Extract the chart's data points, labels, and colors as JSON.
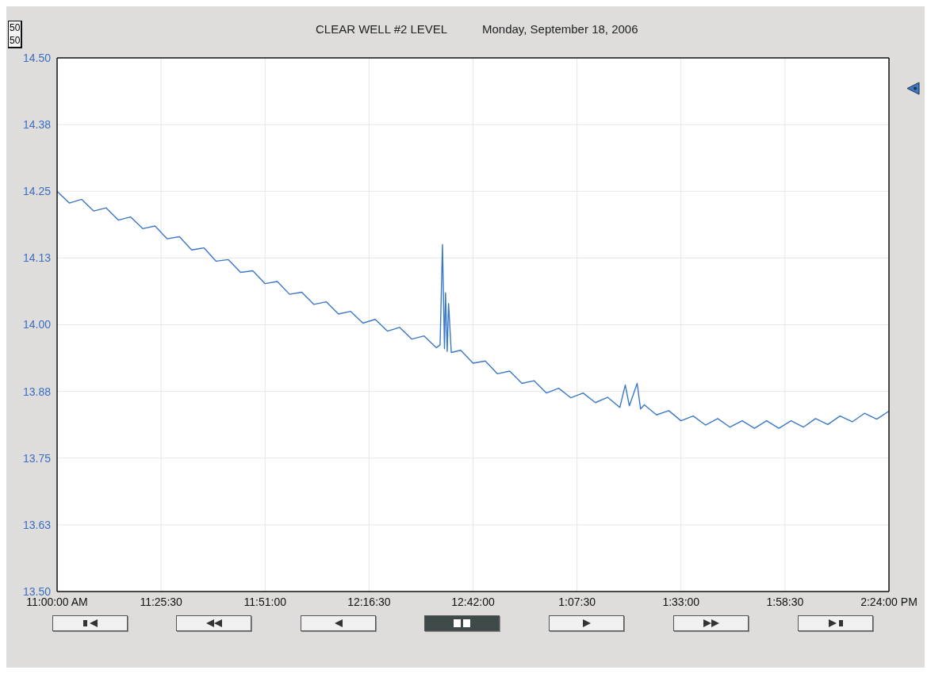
{
  "chart_data": {
    "type": "line",
    "title": "CLEAR WELL #2 LEVEL",
    "subtitle": "Monday, September 18, 2006",
    "annotations": [
      "50",
      "50"
    ],
    "series": [
      {
        "color": "#3a78c9",
        "x": [
          "2006-09-18T11:00",
          "2006-09-18T11:03",
          "2006-09-18T11:06",
          "2006-09-18T11:09",
          "2006-09-18T11:12",
          "2006-09-18T11:15",
          "2006-09-18T11:18",
          "2006-09-18T11:21",
          "2006-09-18T11:24",
          "2006-09-18T11:27",
          "2006-09-18T11:30",
          "2006-09-18T11:33",
          "2006-09-18T11:36",
          "2006-09-18T11:39",
          "2006-09-18T11:42",
          "2006-09-18T11:45",
          "2006-09-18T11:48",
          "2006-09-18T11:51",
          "2006-09-18T11:54",
          "2006-09-18T11:57",
          "2006-09-18T12:00",
          "2006-09-18T12:03",
          "2006-09-18T12:06",
          "2006-09-18T12:09",
          "2006-09-18T12:12",
          "2006-09-18T12:15",
          "2006-09-18T12:18",
          "2006-09-18T12:21",
          "2006-09-18T12:24",
          "2006-09-18T12:27",
          "2006-09-18T12:30",
          "2006-09-18T12:33",
          "2006-09-18T12:33:55",
          "2006-09-18T12:34:30",
          "2006-09-18T12:35:00",
          "2006-09-18T12:35:15",
          "2006-09-18T12:35:40",
          "2006-09-18T12:36",
          "2006-09-18T12:36:40",
          "2006-09-18T12:39",
          "2006-09-18T12:42",
          "2006-09-18T12:45",
          "2006-09-18T12:48",
          "2006-09-18T12:51",
          "2006-09-18T12:54",
          "2006-09-18T12:57",
          "2006-09-18T13:00",
          "2006-09-18T13:03",
          "2006-09-18T13:06",
          "2006-09-18T13:09",
          "2006-09-18T13:12",
          "2006-09-18T13:15",
          "2006-09-18T13:18",
          "2006-09-18T13:19:20",
          "2006-09-18T13:20:20",
          "2006-09-18T13:22:15",
          "2006-09-18T13:23:05",
          "2006-09-18T13:24",
          "2006-09-18T13:27",
          "2006-09-18T13:30",
          "2006-09-18T13:33",
          "2006-09-18T13:36",
          "2006-09-18T13:39",
          "2006-09-18T13:42",
          "2006-09-18T13:45",
          "2006-09-18T13:48",
          "2006-09-18T13:51",
          "2006-09-18T13:54",
          "2006-09-18T13:57",
          "2006-09-18T14:00",
          "2006-09-18T14:03",
          "2006-09-18T14:06",
          "2006-09-18T14:09",
          "2006-09-18T14:12",
          "2006-09-18T14:15",
          "2006-09-18T14:18",
          "2006-09-18T14:21",
          "2006-09-18T14:24"
        ],
        "values": [
          14.25,
          14.228,
          14.235,
          14.213,
          14.219,
          14.196,
          14.202,
          14.18,
          14.185,
          14.161,
          14.165,
          14.14,
          14.144,
          14.119,
          14.122,
          14.098,
          14.101,
          14.077,
          14.081,
          14.057,
          14.061,
          14.038,
          14.043,
          14.02,
          14.025,
          14.003,
          14.01,
          13.988,
          13.995,
          13.973,
          13.979,
          13.957,
          13.962,
          14.15,
          13.955,
          14.06,
          13.95,
          14.04,
          13.948,
          13.952,
          13.928,
          13.932,
          13.908,
          13.913,
          13.89,
          13.895,
          13.872,
          13.881,
          13.863,
          13.872,
          13.854,
          13.864,
          13.845,
          13.887,
          13.848,
          13.89,
          13.842,
          13.85,
          13.831,
          13.839,
          13.82,
          13.829,
          13.812,
          13.824,
          13.808,
          13.82,
          13.806,
          13.82,
          13.806,
          13.82,
          13.808,
          13.824,
          13.813,
          13.829,
          13.818,
          13.834,
          13.823,
          13.838
        ]
      }
    ],
    "xlim": [
      "2006-09-18T11:00",
      "2006-09-18T14:24"
    ],
    "xticks": [
      {
        "value": "2006-09-18T11:00:00",
        "label": "11:00:00 AM"
      },
      {
        "value": "2006-09-18T11:25:30",
        "label": "11:25:30"
      },
      {
        "value": "2006-09-18T11:51:00",
        "label": "11:51:00"
      },
      {
        "value": "2006-09-18T12:16:30",
        "label": "12:16:30"
      },
      {
        "value": "2006-09-18T12:42:00",
        "label": "12:42:00"
      },
      {
        "value": "2006-09-18T13:07:30",
        "label": "1:07:30"
      },
      {
        "value": "2006-09-18T13:33:00",
        "label": "1:33:00"
      },
      {
        "value": "2006-09-18T13:58:30",
        "label": "1:58:30"
      },
      {
        "value": "2006-09-18T14:24:00",
        "label": "2:24:00 PM"
      }
    ],
    "ylim": [
      13.5,
      14.5
    ],
    "yticks": [
      {
        "value": 13.5,
        "label": "13.50"
      },
      {
        "value": 13.625,
        "label": "13.63"
      },
      {
        "value": 13.75,
        "label": "13.75"
      },
      {
        "value": 13.875,
        "label": "13.88"
      },
      {
        "value": 14.0,
        "label": "14.00"
      },
      {
        "value": 14.125,
        "label": "14.13"
      },
      {
        "value": 14.25,
        "label": "14.25"
      },
      {
        "value": 14.375,
        "label": "14.38"
      },
      {
        "value": 14.5,
        "label": "14.50"
      }
    ],
    "grid": true,
    "marker": "none",
    "line_style": "solid",
    "legend": false
  }
}
